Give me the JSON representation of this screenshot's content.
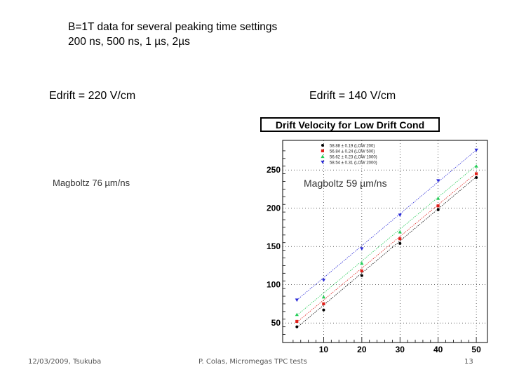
{
  "header": {
    "line1": "B=1T data for several peaking time settings",
    "line2": "200 ns, 500 ns, 1 µs, 2µs"
  },
  "panels": {
    "left": {
      "edrift": "Edrift = 220 V/cm",
      "magboltz": "Magboltz 76 µm/ns"
    },
    "right": {
      "edrift": "Edrift = 140 V/cm",
      "magboltz": "Magboltz 59 µm/ns"
    }
  },
  "footer": {
    "date": "12/03/2009, Tsukuba",
    "author": "P. Colas, Micromegas TPC tests",
    "page": "13"
  },
  "chart_data": {
    "type": "scatter",
    "title": "Drift Velocity for Low Drift Cond",
    "xlabel": "",
    "ylabel": "",
    "xlim": [
      0,
      52
    ],
    "ylim": [
      30,
      285
    ],
    "xticks": [
      10,
      20,
      30,
      40,
      50
    ],
    "yticks": [
      50,
      100,
      150,
      200,
      250
    ],
    "grid": true,
    "legend_position": "top-left",
    "series": [
      {
        "name": "58.88 ± 0.19 (LOW 200)",
        "color": "#000000",
        "marker": "circle",
        "x": [
          3,
          10,
          20,
          30,
          40,
          50
        ],
        "y": [
          45,
          67,
          112,
          154,
          198,
          240
        ],
        "fit": [
          [
            3,
            44
          ],
          [
            50,
            241
          ]
        ]
      },
      {
        "name": "56.84 ± 0.24 (LOW 500)",
        "color": "#e0201a",
        "marker": "square",
        "x": [
          3,
          10,
          20,
          30,
          40,
          50
        ],
        "y": [
          52,
          75,
          118,
          160,
          203,
          245
        ],
        "fit": [
          [
            3,
            51
          ],
          [
            50,
            246
          ]
        ]
      },
      {
        "name": "56.62 ± 0.23 (LOW 1000)",
        "color": "#22cc55",
        "marker": "triangle-up",
        "x": [
          3,
          10,
          20,
          30,
          40,
          50
        ],
        "y": [
          61,
          84,
          128,
          169,
          213,
          255
        ],
        "fit": [
          [
            3,
            60
          ],
          [
            50,
            256
          ]
        ]
      },
      {
        "name": "58.54 ± 0.31 (LOW 2000)",
        "color": "#2a2ad8",
        "marker": "triangle-down",
        "x": [
          3,
          10,
          20,
          30,
          40,
          50
        ],
        "y": [
          80,
          106,
          147,
          191,
          236,
          276
        ],
        "fit": [
          [
            3,
            80
          ],
          [
            50,
            276
          ]
        ]
      }
    ]
  }
}
